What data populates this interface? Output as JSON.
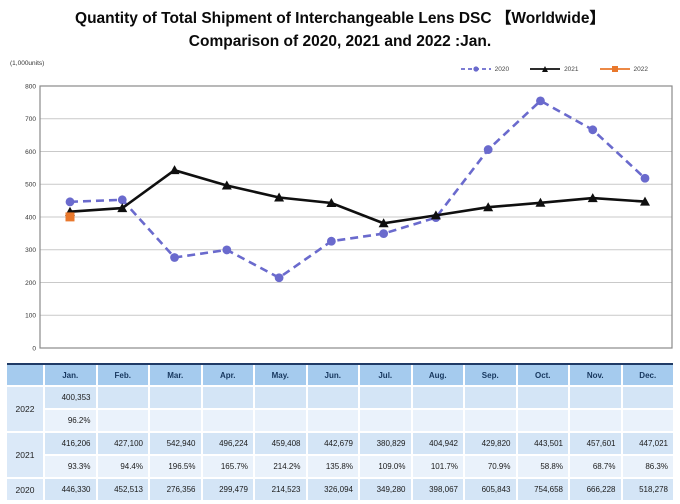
{
  "title": {
    "line1": "Quantity of Total Shipment of Interchangeable Lens DSC 【Worldwide】",
    "line2": "Comparison of 2020, 2021 and 2022 :Jan."
  },
  "units_label": "(1,000units)",
  "colors": {
    "series_2020": "#6A6ACD",
    "series_2021": "#0F0F0F",
    "series_2022": "#E9782C",
    "grid_line": "#C9C9C9",
    "plot_border": "#8A8A8A",
    "tick_text": "#333333",
    "table_header_bg": "#A5CBEE",
    "table_value_bg": "#D4E5F6",
    "table_percent_bg": "#EAF2FB",
    "table_year_bg": "#DBE9F8",
    "table_top_border": "#1F3A66"
  },
  "chart_data": {
    "type": "line",
    "title": "Quantity of Total Shipment of Interchangeable Lens DSC 【Worldwide】 Comparison of 2020, 2021 and 2022 :Jan.",
    "xlabel": "",
    "ylabel": "(1,000units)",
    "ylim": [
      0,
      800
    ],
    "ytick_step": 100,
    "unit_divisor": 1000,
    "grid": true,
    "legend_position": "top-right",
    "categories": [
      "Jan.",
      "Feb.",
      "Mar.",
      "Apr.",
      "May.",
      "Jun.",
      "Jul.",
      "Aug.",
      "Sep.",
      "Oct.",
      "Nov.",
      "Dec."
    ],
    "series": [
      {
        "name": "2020",
        "color": "#6A6ACD",
        "line": "dashed",
        "marker": "circle",
        "values": [
          446330,
          452513,
          276356,
          299479,
          214523,
          326094,
          349280,
          398067,
          605843,
          754658,
          666228,
          518278
        ]
      },
      {
        "name": "2021",
        "color": "#0F0F0F",
        "line": "solid",
        "marker": "triangle",
        "values": [
          416206,
          427100,
          542940,
          496224,
          459408,
          442679,
          380829,
          404942,
          429820,
          443501,
          457601,
          447021
        ]
      },
      {
        "name": "2022",
        "color": "#E9782C",
        "line": "solid",
        "marker": "square",
        "values": [
          400353,
          null,
          null,
          null,
          null,
          null,
          null,
          null,
          null,
          null,
          null,
          null
        ]
      }
    ]
  },
  "table": {
    "col_headers": [
      "Jan.",
      "Feb.",
      "Mar.",
      "Apr.",
      "May.",
      "Jun.",
      "Jul.",
      "Aug.",
      "Sep.",
      "Oct.",
      "Nov.",
      "Dec."
    ],
    "rows": [
      {
        "year": "2022",
        "values": [
          "400,353",
          "",
          "",
          "",
          "",
          "",
          "",
          "",
          "",
          "",
          "",
          ""
        ],
        "percents": [
          "96.2%",
          "",
          "",
          "",
          "",
          "",
          "",
          "",
          "",
          "",
          "",
          ""
        ]
      },
      {
        "year": "2021",
        "values": [
          "416,206",
          "427,100",
          "542,940",
          "496,224",
          "459,408",
          "442,679",
          "380,829",
          "404,942",
          "429,820",
          "443,501",
          "457,601",
          "447,021"
        ],
        "percents": [
          "93.3%",
          "94.4%",
          "196.5%",
          "165.7%",
          "214.2%",
          "135.8%",
          "109.0%",
          "101.7%",
          "70.9%",
          "58.8%",
          "68.7%",
          "86.3%"
        ]
      },
      {
        "year": "2020",
        "values": [
          "446,330",
          "452,513",
          "276,356",
          "299,479",
          "214,523",
          "326,094",
          "349,280",
          "398,067",
          "605,843",
          "754,658",
          "666,228",
          "518,278"
        ],
        "percents": null
      }
    ]
  }
}
